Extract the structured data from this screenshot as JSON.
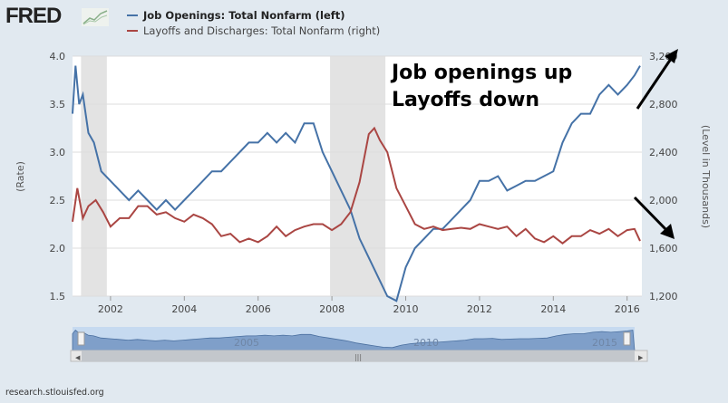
{
  "logo": "FRED",
  "legend": [
    {
      "label": "Job Openings: Total Nonfarm (left)",
      "color": "#4572a7"
    },
    {
      "label": "Layoffs and Discharges: Total Nonfarm (right)",
      "color": "#aa4643"
    }
  ],
  "source": "research.stlouisfed.org",
  "annotation": {
    "line1": "Job openings up",
    "line2": "Layoffs down"
  },
  "navigator": {
    "labels": [
      "2005",
      "2010",
      "2015"
    ]
  },
  "chart_data": {
    "type": "line",
    "ylabel_left": "(Rate)",
    "ylabel_right": "(Level in Thousands)",
    "ylim_left": [
      1.5,
      4.0
    ],
    "ylim_right": [
      1200,
      3200
    ],
    "yticks_left": [
      "1.5",
      "2.0",
      "2.5",
      "3.0",
      "3.5",
      "4.0"
    ],
    "yticks_right": [
      "1,200",
      "1,600",
      "2,000",
      "2,400",
      "2,800",
      "3,200"
    ],
    "xticks": [
      "2002",
      "2004",
      "2006",
      "2008",
      "2010",
      "2012",
      "2014",
      "2016"
    ],
    "xlim": [
      2000.97,
      2016.4
    ],
    "recessions": [
      [
        2001.2,
        2001.9
      ],
      [
        2007.95,
        2009.45
      ]
    ],
    "series": [
      {
        "name": "Job Openings: Total Nonfarm (left)",
        "axis": "left",
        "color": "#4572a7",
        "x": [
          2000.97,
          2001.05,
          2001.15,
          2001.25,
          2001.4,
          2001.55,
          2001.75,
          2002,
          2002.25,
          2002.5,
          2002.75,
          2003,
          2003.25,
          2003.5,
          2003.75,
          2004,
          2004.25,
          2004.5,
          2004.75,
          2005,
          2005.25,
          2005.5,
          2005.75,
          2006,
          2006.25,
          2006.5,
          2006.75,
          2007,
          2007.25,
          2007.5,
          2007.75,
          2008,
          2008.25,
          2008.5,
          2008.75,
          2009,
          2009.25,
          2009.5,
          2009.75,
          2010,
          2010.25,
          2010.5,
          2010.75,
          2011,
          2011.25,
          2011.5,
          2011.75,
          2012,
          2012.25,
          2012.5,
          2012.75,
          2013,
          2013.25,
          2013.5,
          2013.75,
          2014,
          2014.25,
          2014.5,
          2014.75,
          2015,
          2015.25,
          2015.5,
          2015.75,
          2016,
          2016.2,
          2016.35
        ],
        "values": [
          3.4,
          3.9,
          3.5,
          3.6,
          3.2,
          3.1,
          2.8,
          2.7,
          2.6,
          2.5,
          2.6,
          2.5,
          2.4,
          2.5,
          2.4,
          2.5,
          2.6,
          2.7,
          2.8,
          2.8,
          2.9,
          3.0,
          3.1,
          3.1,
          3.2,
          3.1,
          3.2,
          3.1,
          3.3,
          3.3,
          3.0,
          2.8,
          2.6,
          2.4,
          2.1,
          1.9,
          1.7,
          1.5,
          1.45,
          1.8,
          2.0,
          2.1,
          2.2,
          2.2,
          2.3,
          2.4,
          2.5,
          2.7,
          2.7,
          2.75,
          2.6,
          2.65,
          2.7,
          2.7,
          2.75,
          2.8,
          3.1,
          3.3,
          3.4,
          3.4,
          3.6,
          3.7,
          3.6,
          3.7,
          3.8,
          3.9
        ]
      },
      {
        "name": "Layoffs and Discharges: Total Nonfarm (right)",
        "axis": "right",
        "color": "#aa4643",
        "x": [
          2000.97,
          2001.1,
          2001.25,
          2001.4,
          2001.6,
          2001.8,
          2002,
          2002.25,
          2002.5,
          2002.75,
          2003,
          2003.25,
          2003.5,
          2003.75,
          2004,
          2004.25,
          2004.5,
          2004.75,
          2005,
          2005.25,
          2005.5,
          2005.75,
          2006,
          2006.25,
          2006.5,
          2006.75,
          2007,
          2007.25,
          2007.5,
          2007.75,
          2008,
          2008.25,
          2008.5,
          2008.75,
          2009,
          2009.15,
          2009.3,
          2009.5,
          2009.75,
          2010,
          2010.25,
          2010.5,
          2010.75,
          2011,
          2011.25,
          2011.5,
          2011.75,
          2012,
          2012.25,
          2012.5,
          2012.75,
          2013,
          2013.25,
          2013.5,
          2013.75,
          2014,
          2014.25,
          2014.5,
          2014.75,
          2015,
          2015.25,
          2015.5,
          2015.75,
          2016,
          2016.2,
          2016.35
        ],
        "values": [
          1820,
          2100,
          1850,
          1950,
          2000,
          1900,
          1780,
          1850,
          1850,
          1950,
          1950,
          1880,
          1900,
          1850,
          1820,
          1880,
          1850,
          1800,
          1700,
          1720,
          1650,
          1680,
          1650,
          1700,
          1780,
          1700,
          1750,
          1780,
          1800,
          1800,
          1750,
          1800,
          1900,
          2150,
          2550,
          2600,
          2500,
          2400,
          2100,
          1950,
          1800,
          1760,
          1780,
          1750,
          1760,
          1770,
          1760,
          1800,
          1780,
          1760,
          1780,
          1700,
          1760,
          1680,
          1650,
          1700,
          1640,
          1700,
          1700,
          1750,
          1720,
          1760,
          1700,
          1750,
          1760,
          1660
        ]
      }
    ]
  }
}
